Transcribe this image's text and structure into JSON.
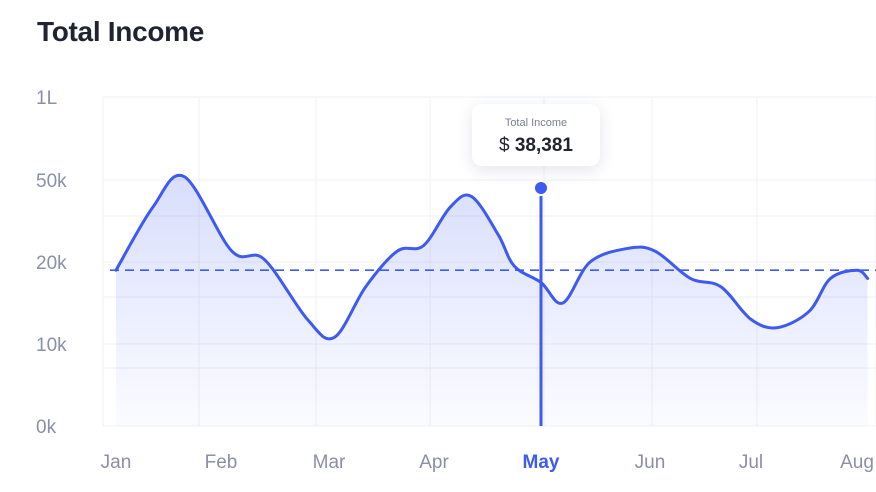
{
  "header": {
    "title": "Total Income"
  },
  "tooltip": {
    "label": "Total Income",
    "currency": "$",
    "value": "38,381"
  },
  "colors": {
    "line": "#3d5af1",
    "grid": "#eef0f5",
    "text": "#8a90a6",
    "title": "#1f2430"
  },
  "chart_data": {
    "type": "area",
    "title": "Total Income",
    "y_tick_labels": [
      "1L",
      "50k",
      "20k",
      "10k",
      "0k"
    ],
    "y_scale": "non-linear (categorical ticks)",
    "x_tick_labels": [
      "Jan",
      "Feb",
      "Mar",
      "Apr",
      "May",
      "Jun",
      "Jul",
      "Aug"
    ],
    "highlighted_category": "May",
    "reference_line": {
      "value": 19000,
      "style": "dashed"
    },
    "series": [
      {
        "values": [
          [
            0.0,
            19000
          ],
          [
            0.35,
            40000
          ],
          [
            0.65,
            52000
          ],
          [
            1.1,
            24000
          ],
          [
            1.4,
            21000
          ],
          [
            1.8,
            13000
          ],
          [
            2.05,
            10800
          ],
          [
            2.35,
            17000
          ],
          [
            2.65,
            24000
          ],
          [
            2.9,
            26000
          ],
          [
            3.15,
            40000
          ],
          [
            3.35,
            44000
          ],
          [
            3.6,
            30000
          ],
          [
            3.75,
            19500
          ],
          [
            4.0,
            17500
          ],
          [
            4.2,
            15000
          ],
          [
            4.45,
            20000
          ],
          [
            4.8,
            25000
          ],
          [
            5.05,
            24000
          ],
          [
            5.4,
            18000
          ],
          [
            5.7,
            17000
          ],
          [
            6.0,
            13000
          ],
          [
            6.25,
            12000
          ],
          [
            6.55,
            14000
          ],
          [
            6.75,
            18000
          ],
          [
            7.0,
            19000
          ],
          [
            7.1,
            18000
          ]
        ]
      }
    ],
    "grid": true,
    "legend": "none"
  }
}
